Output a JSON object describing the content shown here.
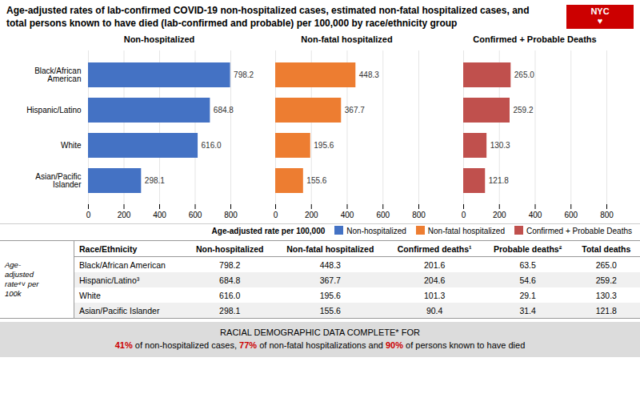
{
  "title": "Age-adjusted rates of lab-confirmed COVID-19 non-hospitalized cases, estimated non-fatal hospitalized cases, and total persons known to have died (lab-confirmed and probable) per 100,000 by race/ethnicity group",
  "logo": {
    "text": "NYC\n♥",
    "color": "#CC0000"
  },
  "legend_title": "Age-adjusted rate per 100,000",
  "chart_data": [
    {
      "type": "bar",
      "orientation": "horizontal",
      "title": "Non-hospitalized",
      "categories": [
        "Black/African\nAmerican",
        "Hispanic/Latino",
        "White",
        "Asian/Pacific\nIslander"
      ],
      "series": [
        {
          "name": "Non-hospitalized",
          "color": "#4472C4",
          "values": [
            798.2,
            684.8,
            616.0,
            298.1
          ],
          "value_labels": [
            "798.2",
            "684.8",
            "616.0",
            "298.1"
          ]
        }
      ],
      "xlim": [
        0,
        800
      ],
      "xticks": [
        0,
        200,
        400,
        600,
        800
      ],
      "grid": true,
      "data_labels": true
    },
    {
      "type": "bar",
      "orientation": "horizontal",
      "title": "Non-fatal hospitalized",
      "categories": [
        "Black/African\nAmerican",
        "Hispanic/Latino",
        "White",
        "Asian/Pacific\nIslander"
      ],
      "series": [
        {
          "name": "Non-fatal hospitalized",
          "color": "#ED7D31",
          "values": [
            448.3,
            367.7,
            195.6,
            155.6
          ],
          "value_labels": [
            "448.3",
            "367.7",
            "195.6",
            "155.6"
          ]
        }
      ],
      "xlim": [
        0,
        800
      ],
      "xticks": [
        0,
        200,
        400,
        600,
        800
      ],
      "grid": true,
      "data_labels": true,
      "tick_labels": "x"
    },
    {
      "type": "bar",
      "orientation": "horizontal",
      "title": "Confirmed + Probable Deaths",
      "categories": [
        "Black/African\nAmerican",
        "Hispanic/Latino",
        "White",
        "Asian/Pacific\nIslander"
      ],
      "series": [
        {
          "name": "Confirmed + Probable Deaths",
          "color": "#C0504D",
          "values": [
            265.0,
            259.2,
            130.3,
            121.8
          ],
          "value_labels": [
            "265.0",
            "259.2",
            "130.3",
            "121.8"
          ]
        }
      ],
      "xlim": [
        0,
        800
      ],
      "xticks": [
        0,
        200,
        400,
        600,
        800
      ],
      "grid": true,
      "data_labels": true,
      "tick_labels": "x",
      "legend": "lower right"
    }
  ],
  "table": {
    "caption": "Age-\nadjusted\nrate⁴˅ per\n100k",
    "headers": [
      "Race/Ethnicity",
      "Non-hospitalized",
      "Non-fatal hospitalized",
      "Confirmed deaths¹",
      "Probable deaths²",
      "Total deaths"
    ],
    "rows": [
      [
        "Black/African American",
        "798.2",
        "448.3",
        "201.6",
        "63.5",
        "265.0"
      ],
      [
        "Hispanic/Latino³",
        "684.8",
        "367.7",
        "204.6",
        "54.6",
        "259.2"
      ],
      [
        "White",
        "616.0",
        "195.6",
        "101.3",
        "29.1",
        "130.3"
      ],
      [
        "Asian/Pacific Islander",
        "298.1",
        "155.6",
        "90.4",
        "31.4",
        "121.8"
      ]
    ]
  },
  "footer": {
    "color": "#DCDCDC",
    "highlight_color": "#CC0000",
    "line1": "RACIAL DEMOGRAPHIC DATA COMPLETE* FOR",
    "line2": [
      {
        "text": "41%",
        "highlight": true
      },
      {
        "text": " of non-hospitalized cases, ",
        "highlight": false
      },
      {
        "text": "77%",
        "highlight": true
      },
      {
        "text": " of non-fatal hospitalizations and ",
        "highlight": false
      },
      {
        "text": "90%",
        "highlight": true
      },
      {
        "text": " of persons known to have died",
        "highlight": false
      }
    ]
  }
}
